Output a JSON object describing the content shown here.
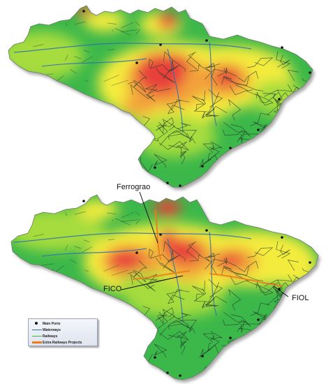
{
  "colors": {
    "high": "#e8413a",
    "mid_high": "#f2a23a",
    "mid": "#f4ec3c",
    "low_mid": "#a6dc3c",
    "low": "#3cb84a",
    "outline": "#6f7a6b",
    "rail": "#1d3a2a",
    "water": "#2f6fb0",
    "extra_rail": "#f07a1a",
    "port": "#111111"
  },
  "labels": {
    "ferrograo": "Ferrograo",
    "fico": "FICO",
    "fiol": "FIOL"
  },
  "legend": {
    "items": [
      {
        "label": "Main Ports",
        "symbol": "dot"
      },
      {
        "label": "Waterways",
        "symbol": "line-blue"
      },
      {
        "label": "Railways",
        "symbol": "line-green"
      },
      {
        "label": "Extra Railways Projects",
        "symbol": "line-orange"
      }
    ]
  }
}
